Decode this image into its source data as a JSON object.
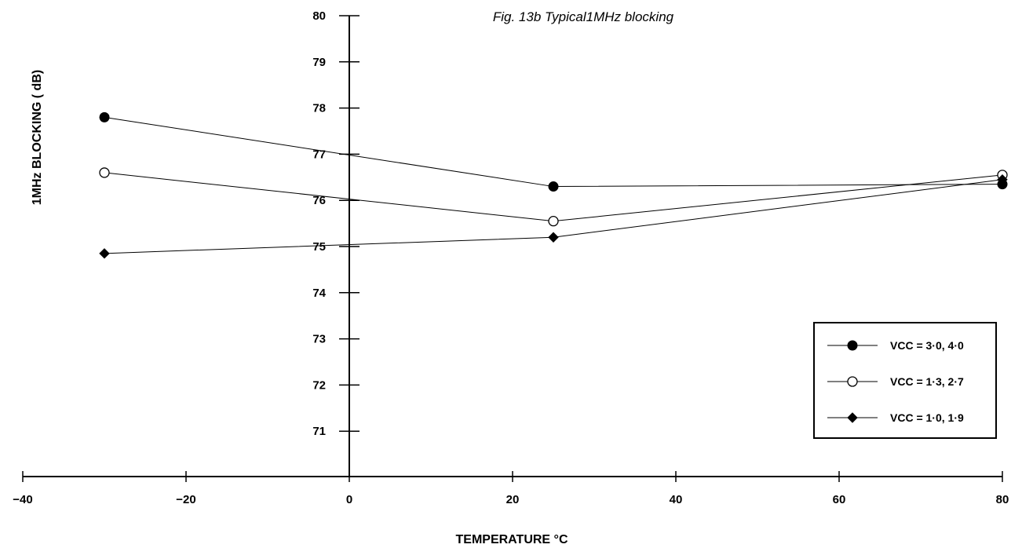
{
  "chart_data": {
    "type": "line",
    "title": "Fig. 13b Typical1MHz blocking",
    "xlabel": "TEMPERATURE °C",
    "ylabel": "1MHz BLOCKING ( dB)",
    "xlim": [
      -40,
      80
    ],
    "ylim": [
      70,
      80
    ],
    "x_ticks": [
      -40,
      -20,
      0,
      20,
      40,
      60,
      80
    ],
    "x_tick_labels": [
      "−40",
      "−20",
      "0",
      "20",
      "40",
      "60",
      "80"
    ],
    "y_ticks": [
      71,
      72,
      73,
      74,
      75,
      76,
      77,
      78,
      79,
      80
    ],
    "y_tick_labels": [
      "71",
      "72",
      "73",
      "74",
      "75",
      "76",
      "77",
      "78",
      "79",
      "80"
    ],
    "y_axis_at_x": 0,
    "grid": false,
    "legend_position": "bottom-right",
    "series": [
      {
        "name": "VCC = 3·0, 4·0",
        "marker": "filled-circle",
        "color": "#000000",
        "x": [
          -30,
          25,
          80
        ],
        "y": [
          77.8,
          76.3,
          76.35
        ]
      },
      {
        "name": "VCC = 1·3, 2·7",
        "marker": "open-circle",
        "color": "#000000",
        "x": [
          -30,
          25,
          80
        ],
        "y": [
          76.6,
          75.55,
          76.55
        ]
      },
      {
        "name": "VCC = 1·0, 1·9",
        "marker": "filled-diamond",
        "color": "#000000",
        "x": [
          -30,
          25,
          80
        ],
        "y": [
          74.85,
          75.2,
          76.45
        ]
      }
    ]
  }
}
